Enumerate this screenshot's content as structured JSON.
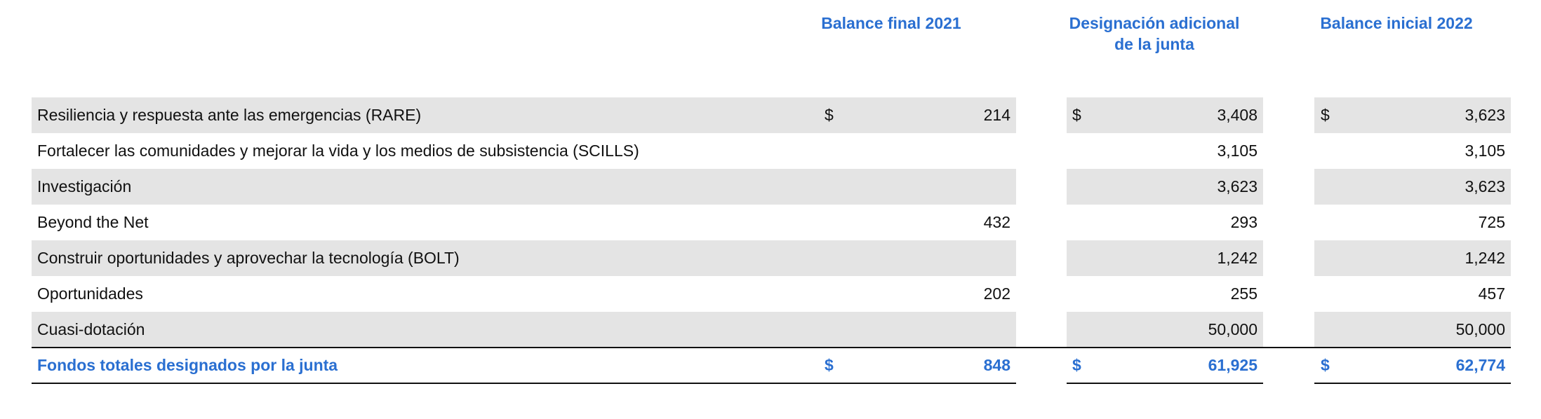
{
  "headers": [
    "Balance final 2021",
    "Designación adicional\nde la junta",
    "Balance inicial 2022"
  ],
  "rows": [
    {
      "label": "Resiliencia y respuesta ante las emergencias (RARE)",
      "cur": [
        "$",
        "$",
        "$"
      ],
      "vals": [
        "214",
        "3,408",
        "3,623"
      ],
      "shaded": true
    },
    {
      "label": "Fortalecer las comunidades y mejorar la vida y los medios de subsistencia (SCILLS)",
      "cur": [
        "",
        "",
        ""
      ],
      "vals": [
        "",
        "3,105",
        "3,105"
      ],
      "shaded": false
    },
    {
      "label": "Investigación",
      "cur": [
        "",
        "",
        ""
      ],
      "vals": [
        "",
        "3,623",
        "3,623"
      ],
      "shaded": true
    },
    {
      "label": "Beyond the Net",
      "cur": [
        "",
        "",
        ""
      ],
      "vals": [
        "432",
        "293",
        "725"
      ],
      "shaded": false
    },
    {
      "label": "Construir oportunidades y aprovechar la tecnología (BOLT)",
      "cur": [
        "",
        "",
        ""
      ],
      "vals": [
        "",
        "1,242",
        "1,242"
      ],
      "shaded": true
    },
    {
      "label": "Oportunidades",
      "cur": [
        "",
        "",
        ""
      ],
      "vals": [
        "202",
        "255",
        "457"
      ],
      "shaded": false
    },
    {
      "label": "Cuasi-dotación",
      "cur": [
        "",
        "",
        ""
      ],
      "vals": [
        "",
        "50,000",
        "50,000"
      ],
      "shaded": true
    }
  ],
  "total": {
    "label": "Fondos totales designados por la junta",
    "cur": [
      "$",
      "$",
      "$"
    ],
    "vals": [
      "848",
      "61,925",
      "62,774"
    ]
  }
}
